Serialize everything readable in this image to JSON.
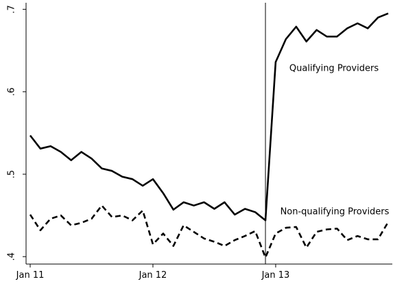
{
  "chart_data": {
    "type": "line",
    "categories": [
      "Jan 11",
      null,
      null,
      null,
      null,
      null,
      null,
      null,
      null,
      null,
      null,
      null,
      "Jan 12",
      null,
      null,
      null,
      null,
      null,
      null,
      null,
      null,
      null,
      null,
      null,
      "Jan 13",
      null,
      null,
      null,
      null,
      null,
      null,
      null,
      null,
      null,
      null,
      null
    ],
    "series": [
      {
        "name": "Qualifying Providers",
        "color": "#000000",
        "dash": "solid",
        "values": [
          0.547,
          0.531,
          0.534,
          0.527,
          0.517,
          0.527,
          0.519,
          0.507,
          0.504,
          0.497,
          0.494,
          0.486,
          0.494,
          0.477,
          0.457,
          0.466,
          0.462,
          0.466,
          0.458,
          0.466,
          0.451,
          0.458,
          0.454,
          0.444,
          0.636,
          0.664,
          0.679,
          0.661,
          0.675,
          0.667,
          0.667,
          0.677,
          0.683,
          0.677,
          0.69,
          0.695
        ]
      },
      {
        "name": "Non-qualifying Providers",
        "color": "#000000",
        "dash": "dashed",
        "values": [
          0.451,
          0.432,
          0.446,
          0.45,
          0.438,
          0.441,
          0.446,
          0.462,
          0.448,
          0.45,
          0.444,
          0.456,
          0.415,
          0.428,
          0.413,
          0.438,
          0.43,
          0.422,
          0.418,
          0.413,
          0.42,
          0.425,
          0.431,
          0.399,
          0.428,
          0.435,
          0.436,
          0.411,
          0.43,
          0.433,
          0.434,
          0.42,
          0.425,
          0.421,
          0.421,
          0.442
        ]
      }
    ],
    "ylim": [
      0.391,
      0.708
    ],
    "yticks": [
      {
        "value": 0.4,
        "label": ".4"
      },
      {
        "value": 0.5,
        "label": ".5"
      },
      {
        "value": 0.6,
        "label": ".6"
      },
      {
        "value": 0.7,
        "label": ".7"
      }
    ],
    "vline_index": 23,
    "grid": false
  }
}
